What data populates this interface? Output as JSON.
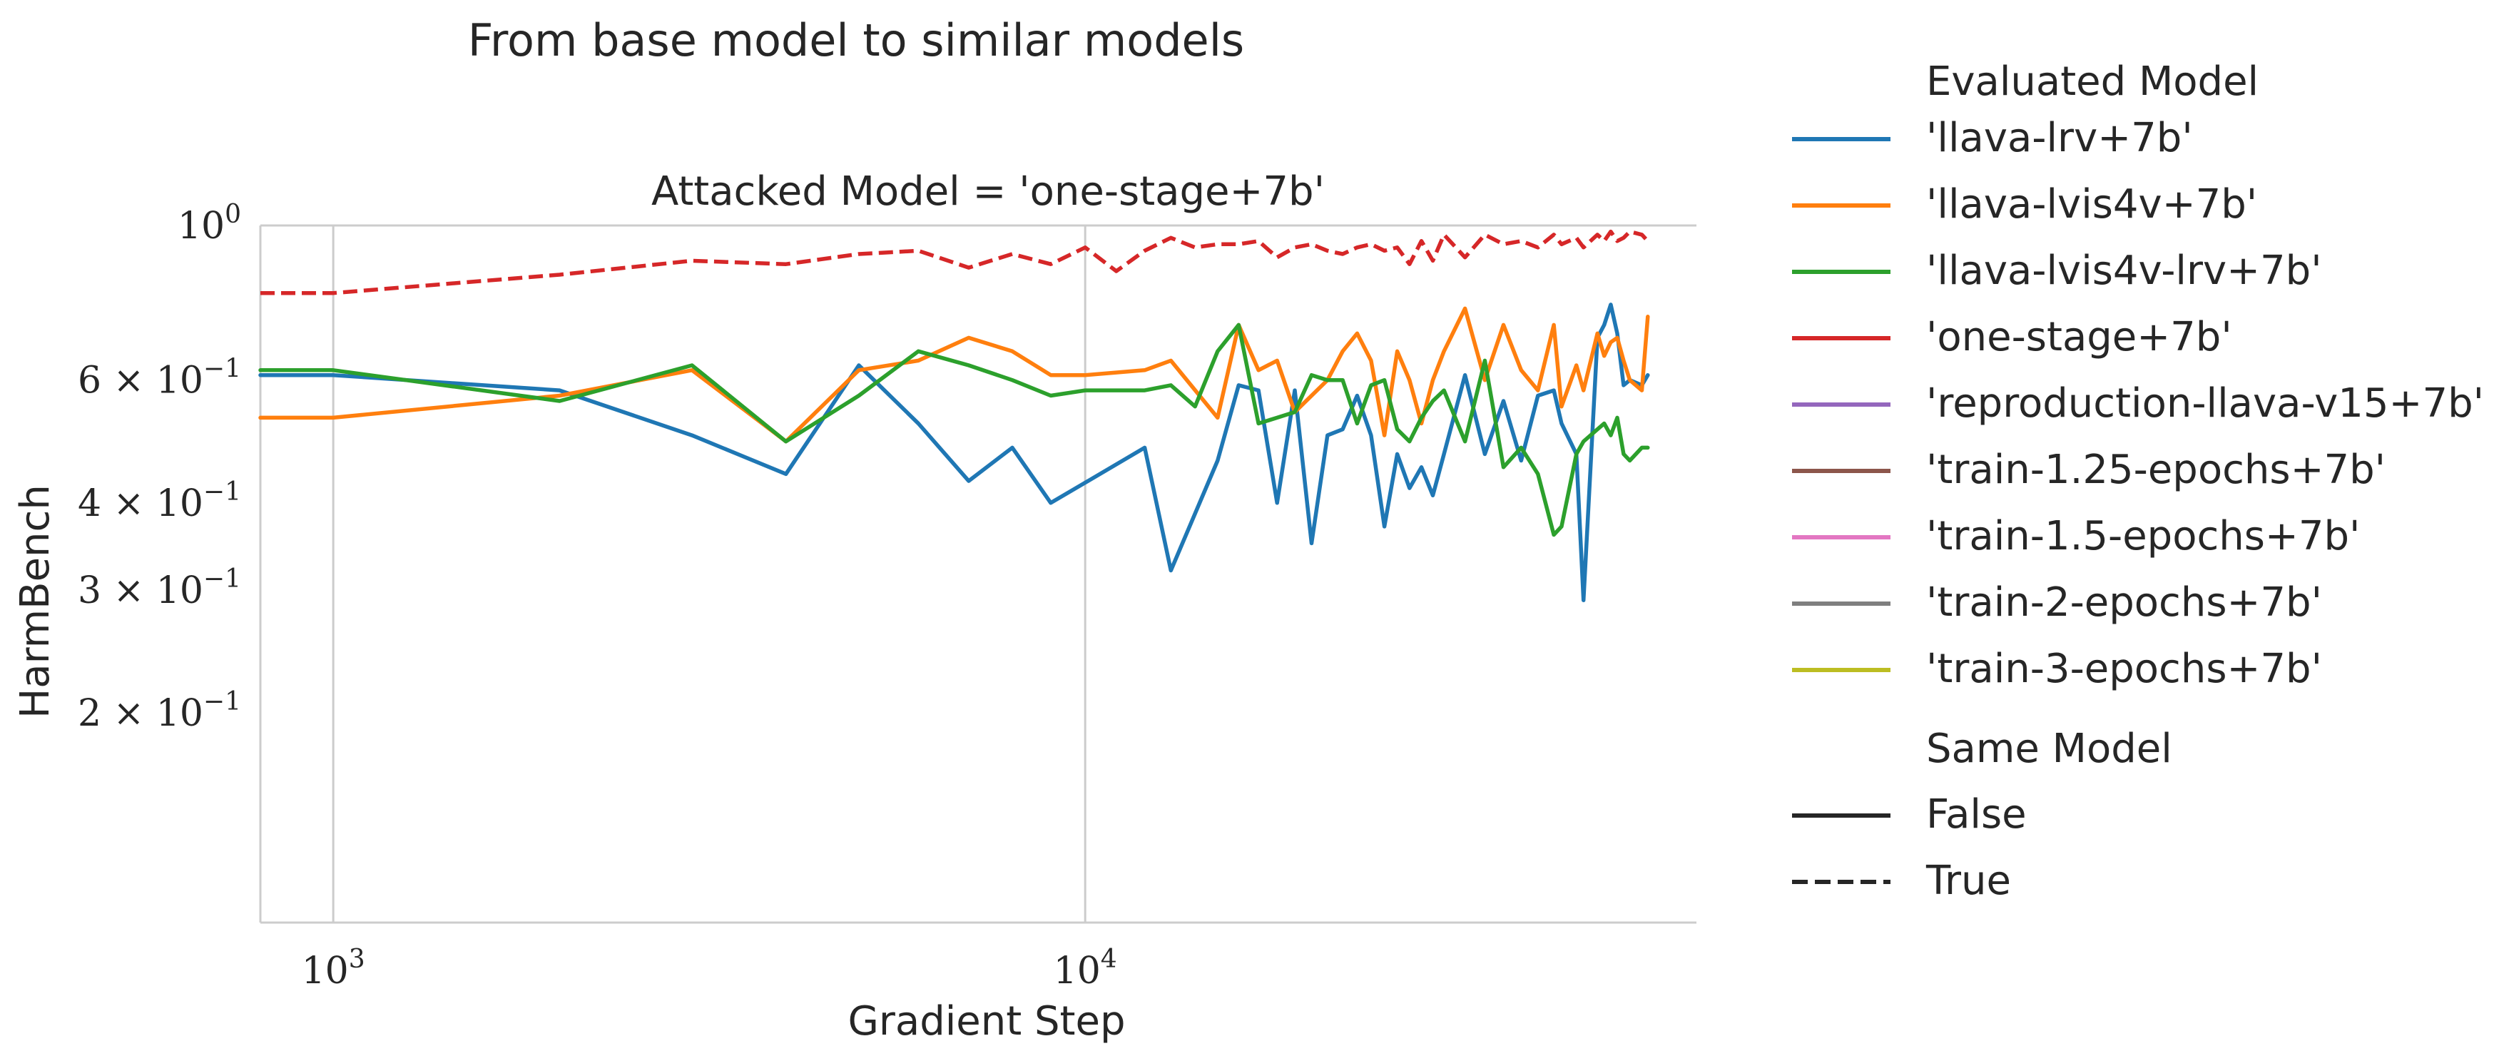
{
  "chart_data": {
    "type": "line",
    "suptitle": "From base model to similar models",
    "title": "Attacked Model = 'one-stage+7b'",
    "xlabel": "Gradient Step",
    "ylabel": "HarmBench",
    "xscale": "log",
    "yscale": "log",
    "xlim": [
      800,
      65000
    ],
    "ylim": [
      0.1,
      1.0
    ],
    "grid": "vertical major lines only",
    "x_ticks": [
      {
        "value": 1000,
        "base": "10",
        "exp": "3"
      },
      {
        "value": 10000,
        "base": "10",
        "exp": "4"
      }
    ],
    "y_ticks": [
      {
        "value": 1.0,
        "base": "10",
        "exp": "0"
      },
      {
        "value": 0.6,
        "coef": "6 × 10",
        "exp": "−1"
      },
      {
        "value": 0.4,
        "coef": "4 × 10",
        "exp": "−1"
      },
      {
        "value": 0.3,
        "coef": "3 × 10",
        "exp": "−1"
      },
      {
        "value": 0.2,
        "coef": "2 × 10",
        "exp": "−1"
      }
    ],
    "legend": {
      "placement": "outside right",
      "hue_title": "Evaluated Model",
      "hue_entries": [
        {
          "label": "'llava-lrv+7b'",
          "color": "#1f77b4"
        },
        {
          "label": "'llava-lvis4v+7b'",
          "color": "#ff7f0e"
        },
        {
          "label": "'llava-lvis4v-lrv+7b'",
          "color": "#2ca02c"
        },
        {
          "label": "'one-stage+7b'",
          "color": "#d62728"
        },
        {
          "label": "'reproduction-llava-v15+7b'",
          "color": "#9467bd"
        },
        {
          "label": "'train-1.25-epochs+7b'",
          "color": "#8c564b"
        },
        {
          "label": "'train-1.5-epochs+7b'",
          "color": "#e377c2"
        },
        {
          "label": "'train-2-epochs+7b'",
          "color": "#7f7f7f"
        },
        {
          "label": "'train-3-epochs+7b'",
          "color": "#bcbd22"
        }
      ],
      "style_title": "Same Model",
      "style_entries": [
        {
          "label": "False",
          "dash": "solid"
        },
        {
          "label": "True",
          "dash": "dashed"
        }
      ]
    },
    "series": [
      {
        "name": "'llava-lrv+7b'",
        "color": "#1f77b4",
        "dash": "solid",
        "x": [
          800,
          1000,
          2000,
          3000,
          4000,
          5000,
          6000,
          7000,
          8000,
          9000,
          12000,
          13000,
          15000,
          16000,
          17000,
          18000,
          19000,
          20000,
          21000,
          22000,
          23000,
          24000,
          25000,
          26000,
          27000,
          28000,
          29000,
          30000,
          32000,
          34000,
          36000,
          38000,
          40000,
          42000,
          43000,
          45000,
          46000,
          48000,
          49000,
          50000,
          51000,
          52000,
          53000,
          55000,
          56000
        ],
        "y": [
          0.61,
          0.61,
          0.58,
          0.5,
          0.44,
          0.63,
          0.52,
          0.43,
          0.48,
          0.4,
          0.48,
          0.32,
          0.46,
          0.59,
          0.58,
          0.4,
          0.58,
          0.35,
          0.5,
          0.51,
          0.57,
          0.5,
          0.37,
          0.47,
          0.42,
          0.45,
          0.41,
          0.47,
          0.61,
          0.47,
          0.56,
          0.46,
          0.57,
          0.58,
          0.52,
          0.47,
          0.29,
          0.69,
          0.72,
          0.77,
          0.7,
          0.59,
          0.6,
          0.59,
          0.61
        ]
      },
      {
        "name": "'llava-lvis4v+7b'",
        "color": "#ff7f0e",
        "dash": "solid",
        "x": [
          800,
          1000,
          2000,
          3000,
          4000,
          5000,
          6000,
          7000,
          8000,
          9000,
          10000,
          12000,
          13000,
          15000,
          16000,
          17000,
          18000,
          19000,
          20000,
          21000,
          22000,
          23000,
          24000,
          25000,
          26000,
          27000,
          28000,
          29000,
          30000,
          32000,
          34000,
          36000,
          38000,
          40000,
          42000,
          43000,
          45000,
          46000,
          48000,
          49000,
          50000,
          51000,
          52000,
          53000,
          55000,
          56000
        ],
        "y": [
          0.53,
          0.53,
          0.57,
          0.62,
          0.49,
          0.62,
          0.64,
          0.69,
          0.66,
          0.61,
          0.61,
          0.62,
          0.64,
          0.53,
          0.72,
          0.62,
          0.64,
          0.54,
          0.57,
          0.6,
          0.66,
          0.7,
          0.64,
          0.5,
          0.66,
          0.6,
          0.52,
          0.6,
          0.66,
          0.76,
          0.6,
          0.72,
          0.62,
          0.58,
          0.72,
          0.55,
          0.63,
          0.58,
          0.7,
          0.65,
          0.68,
          0.69,
          0.64,
          0.6,
          0.58,
          0.74
        ]
      },
      {
        "name": "'llava-lvis4v-lrv+7b'",
        "color": "#2ca02c",
        "dash": "solid",
        "x": [
          800,
          1000,
          2000,
          3000,
          4000,
          5000,
          6000,
          7000,
          8000,
          9000,
          10000,
          12000,
          13000,
          14000,
          15000,
          16000,
          17000,
          18000,
          19000,
          20000,
          21000,
          22000,
          23000,
          24000,
          25000,
          26000,
          27000,
          28000,
          29000,
          30000,
          32000,
          34000,
          36000,
          38000,
          40000,
          42000,
          43000,
          45000,
          46000,
          48000,
          49000,
          50000,
          51000,
          52000,
          53000,
          55000,
          56000
        ],
        "y": [
          0.62,
          0.62,
          0.56,
          0.63,
          0.49,
          0.57,
          0.66,
          0.63,
          0.6,
          0.57,
          0.58,
          0.58,
          0.59,
          0.55,
          0.66,
          0.72,
          0.52,
          0.53,
          0.54,
          0.61,
          0.6,
          0.6,
          0.52,
          0.59,
          0.6,
          0.51,
          0.49,
          0.53,
          0.56,
          0.58,
          0.49,
          0.64,
          0.45,
          0.48,
          0.44,
          0.36,
          0.37,
          0.47,
          0.49,
          0.51,
          0.52,
          0.5,
          0.53,
          0.47,
          0.46,
          0.48,
          0.48
        ]
      },
      {
        "name": "'one-stage+7b'",
        "color": "#d62728",
        "dash": "dashed",
        "x": [
          800,
          1000,
          2000,
          3000,
          4000,
          5000,
          6000,
          7000,
          8000,
          9000,
          10000,
          11000,
          12000,
          13000,
          14000,
          15000,
          16000,
          17000,
          18000,
          19000,
          20000,
          21000,
          22000,
          23000,
          24000,
          25000,
          26000,
          27000,
          28000,
          29000,
          30000,
          32000,
          34000,
          36000,
          38000,
          40000,
          42000,
          43000,
          45000,
          46000,
          48000,
          49000,
          50000,
          51000,
          52000,
          53000,
          55000,
          56000
        ],
        "y": [
          0.8,
          0.8,
          0.85,
          0.89,
          0.88,
          0.91,
          0.92,
          0.87,
          0.91,
          0.88,
          0.93,
          0.86,
          0.92,
          0.96,
          0.93,
          0.94,
          0.94,
          0.95,
          0.9,
          0.93,
          0.94,
          0.92,
          0.91,
          0.93,
          0.94,
          0.92,
          0.93,
          0.88,
          0.95,
          0.89,
          0.97,
          0.9,
          0.97,
          0.94,
          0.95,
          0.93,
          0.97,
          0.94,
          0.96,
          0.93,
          0.97,
          0.95,
          0.98,
          0.95,
          0.96,
          0.98,
          0.97,
          0.95
        ]
      }
    ]
  }
}
